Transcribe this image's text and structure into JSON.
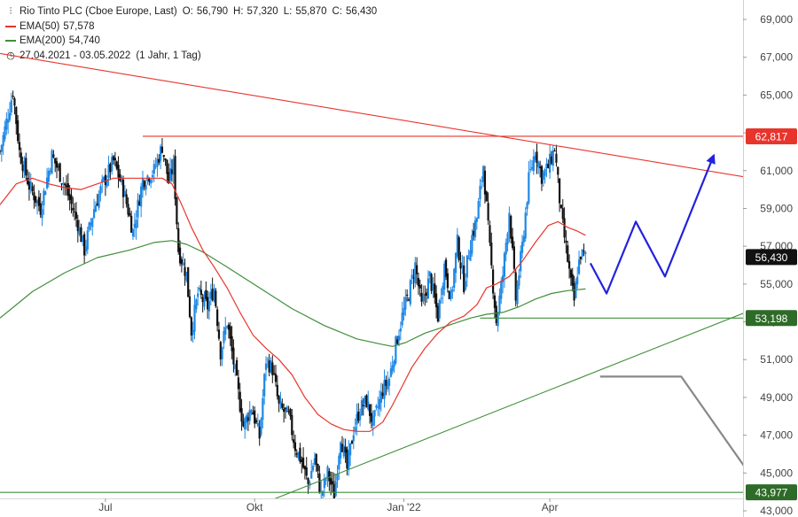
{
  "header": {
    "title": "Rio Tinto PLC (Cboe Europe, Last)",
    "ohlc": [
      {
        "label": "O:",
        "value": "56,790"
      },
      {
        "label": "H:",
        "value": "57,320"
      },
      {
        "label": "L:",
        "value": "55,870"
      },
      {
        "label": "C:",
        "value": "56,430"
      }
    ],
    "ema50": {
      "label": "EMA(50)",
      "value": "57,578",
      "color": "#e8352c"
    },
    "ema200": {
      "label": "EMA(200)",
      "value": "54,740",
      "color": "#3f8f3a"
    },
    "period": "27.04.2021 - 03.05.2022",
    "interval": "(1 Jahr, 1 Tag)"
  },
  "chart_data": {
    "type": "candlestick",
    "y_ticks": [
      "69,000",
      "67,000",
      "65,000",
      "63,000",
      "61,000",
      "59,000",
      "57,000",
      "55,000",
      "53,000",
      "51,000",
      "49,000",
      "47,000",
      "45,000",
      "43,000"
    ],
    "y_tick_values": [
      69,
      67,
      65,
      63,
      61,
      59,
      57,
      55,
      53,
      51,
      49,
      47,
      45,
      43
    ],
    "x_ticks": [
      {
        "label": "Jul",
        "day": 65
      },
      {
        "label": "Okt",
        "day": 157
      },
      {
        "label": "Jan '22",
        "day": 249
      },
      {
        "label": "Apr",
        "day": 339
      }
    ],
    "price_tags": [
      {
        "value": 62.817,
        "label": "62,817",
        "bg": "#e8352c",
        "fg": "#ffffff"
      },
      {
        "value": 56.43,
        "label": "56,430",
        "bg": "#111111",
        "fg": "#ffffff"
      },
      {
        "value": 53.198,
        "label": "53,198",
        "bg": "#2e6b28",
        "fg": "#ffffff"
      },
      {
        "value": 43.977,
        "label": "43,977",
        "bg": "#2e6b28",
        "fg": "#ffffff"
      }
    ],
    "close_anchors": [
      [
        0,
        62.0
      ],
      [
        8,
        65.2
      ],
      [
        12,
        62.0
      ],
      [
        18,
        60.2
      ],
      [
        25,
        59.0
      ],
      [
        32,
        61.8
      ],
      [
        40,
        60.2
      ],
      [
        48,
        58.2
      ],
      [
        52,
        56.8
      ],
      [
        58,
        59.0
      ],
      [
        63,
        60.2
      ],
      [
        70,
        61.5
      ],
      [
        76,
        60.0
      ],
      [
        82,
        57.8
      ],
      [
        88,
        60.5
      ],
      [
        95,
        61.0
      ],
      [
        100,
        62.3
      ],
      [
        104,
        60.4
      ],
      [
        107,
        61.3
      ],
      [
        110,
        56.8
      ],
      [
        115,
        55.5
      ],
      [
        118,
        52.5
      ],
      [
        122,
        54.5
      ],
      [
        128,
        53.8
      ],
      [
        132,
        54.8
      ],
      [
        136,
        51.4
      ],
      [
        140,
        53.0
      ],
      [
        145,
        50.3
      ],
      [
        150,
        47.5
      ],
      [
        155,
        48.5
      ],
      [
        160,
        46.9
      ],
      [
        164,
        51.0
      ],
      [
        168,
        50.5
      ],
      [
        172,
        48.5
      ],
      [
        178,
        48.0
      ],
      [
        182,
        46.4
      ],
      [
        186,
        45.6
      ],
      [
        190,
        44.4
      ],
      [
        194,
        45.8
      ],
      [
        198,
        43.8
      ],
      [
        202,
        45.0
      ],
      [
        206,
        43.8
      ],
      [
        210,
        47.0
      ],
      [
        214,
        45.2
      ],
      [
        218,
        47.3
      ],
      [
        222,
        48.4
      ],
      [
        226,
        48.8
      ],
      [
        230,
        47.6
      ],
      [
        236,
        49.4
      ],
      [
        240,
        50.0
      ],
      [
        244,
        51.8
      ],
      [
        248,
        53.3
      ],
      [
        252,
        54.5
      ],
      [
        256,
        56.0
      ],
      [
        260,
        53.8
      ],
      [
        265,
        55.4
      ],
      [
        270,
        53.3
      ],
      [
        274,
        56.0
      ],
      [
        278,
        54.2
      ],
      [
        282,
        57.2
      ],
      [
        286,
        55.0
      ],
      [
        290,
        57.2
      ],
      [
        294,
        58.5
      ],
      [
        298,
        61.3
      ],
      [
        302,
        56.8
      ],
      [
        306,
        53.0
      ],
      [
        310,
        55.5
      ],
      [
        314,
        58.9
      ],
      [
        318,
        54.2
      ],
      [
        322,
        57.0
      ],
      [
        326,
        60.5
      ],
      [
        330,
        62.1
      ],
      [
        334,
        60.7
      ],
      [
        338,
        61.2
      ],
      [
        342,
        62.2
      ],
      [
        346,
        58.6
      ],
      [
        349,
        56.9
      ],
      [
        352,
        55.0
      ],
      [
        354,
        54.1
      ],
      [
        356,
        55.7
      ],
      [
        358,
        56.6
      ],
      [
        361,
        56.43
      ]
    ],
    "ema50": [
      [
        0,
        59.2
      ],
      [
        10,
        60.3
      ],
      [
        20,
        60.6
      ],
      [
        30,
        60.3
      ],
      [
        40,
        60.1
      ],
      [
        50,
        60.0
      ],
      [
        60,
        60.3
      ],
      [
        70,
        60.6
      ],
      [
        80,
        60.6
      ],
      [
        90,
        60.6
      ],
      [
        100,
        60.6
      ],
      [
        106,
        60.3
      ],
      [
        112,
        59.2
      ],
      [
        118,
        58.0
      ],
      [
        125,
        56.8
      ],
      [
        132,
        55.9
      ],
      [
        140,
        54.8
      ],
      [
        148,
        53.5
      ],
      [
        156,
        52.3
      ],
      [
        164,
        51.6
      ],
      [
        172,
        51.0
      ],
      [
        180,
        50.2
      ],
      [
        188,
        49.0
      ],
      [
        196,
        48.1
      ],
      [
        204,
        47.6
      ],
      [
        212,
        47.3
      ],
      [
        220,
        47.2
      ],
      [
        228,
        47.2
      ],
      [
        236,
        47.7
      ],
      [
        242,
        48.6
      ],
      [
        248,
        49.6
      ],
      [
        254,
        50.6
      ],
      [
        262,
        51.6
      ],
      [
        270,
        52.4
      ],
      [
        278,
        53.0
      ],
      [
        286,
        53.3
      ],
      [
        294,
        53.9
      ],
      [
        300,
        54.8
      ],
      [
        306,
        55.0
      ],
      [
        314,
        55.4
      ],
      [
        322,
        56.2
      ],
      [
        330,
        57.2
      ],
      [
        338,
        58.1
      ],
      [
        344,
        58.3
      ],
      [
        350,
        58.0
      ],
      [
        356,
        57.8
      ],
      [
        361,
        57.578
      ]
    ],
    "ema200": [
      [
        0,
        53.2
      ],
      [
        20,
        54.6
      ],
      [
        40,
        55.6
      ],
      [
        60,
        56.4
      ],
      [
        80,
        56.8
      ],
      [
        95,
        57.2
      ],
      [
        106,
        57.3
      ],
      [
        115,
        57.1
      ],
      [
        125,
        56.7
      ],
      [
        140,
        55.9
      ],
      [
        160,
        54.8
      ],
      [
        180,
        53.7
      ],
      [
        200,
        52.8
      ],
      [
        220,
        52.1
      ],
      [
        236,
        51.8
      ],
      [
        242,
        51.7
      ],
      [
        250,
        51.9
      ],
      [
        262,
        52.4
      ],
      [
        276,
        52.8
      ],
      [
        290,
        53.2
      ],
      [
        300,
        53.4
      ],
      [
        310,
        53.5
      ],
      [
        320,
        53.8
      ],
      [
        330,
        54.2
      ],
      [
        340,
        54.5
      ],
      [
        350,
        54.65
      ],
      [
        361,
        54.74
      ]
    ],
    "trendlines": [
      {
        "name": "resistance-downtrend",
        "color": "#e8352c",
        "p1": [
          0,
          67.2
        ],
        "p2": [
          492,
          60.2
        ]
      },
      {
        "name": "support-uptrend",
        "color": "#3f8f3a",
        "p1": [
          133,
          42.4
        ],
        "p2": [
          492,
          54.6
        ]
      },
      {
        "name": "support-lower-uptrend",
        "color": "#3f8f3a",
        "p1": [
          400,
          42.4
        ],
        "p2": [
          492,
          43.3
        ]
      },
      {
        "name": "horizontal-62817",
        "color": "#e8352c",
        "p1": [
          88,
          62.817
        ],
        "p2": [
          492,
          62.817
        ]
      },
      {
        "name": "horizontal-53198",
        "color": "#3f8f3a",
        "p1": [
          296,
          53.198
        ],
        "p2": [
          492,
          53.198
        ]
      },
      {
        "name": "horizontal-43977",
        "color": "#3f8f3a",
        "p1": [
          0,
          43.977
        ],
        "p2": [
          492,
          43.977
        ]
      }
    ],
    "scenarios": [
      {
        "name": "bullish-path",
        "color": "#2222dd",
        "points": [
          [
            364,
            56.1
          ],
          [
            374,
            54.5
          ],
          [
            392,
            58.3
          ],
          [
            410,
            55.4
          ],
          [
            440,
            61.8
          ]
        ]
      },
      {
        "name": "bearish-path",
        "color": "#888888",
        "points": [
          [
            370,
            50.1
          ],
          [
            420,
            50.1
          ],
          [
            470,
            44.0
          ],
          [
            485,
            47.6
          ]
        ]
      }
    ],
    "ylim": [
      43,
      69.5
    ],
    "xlim": [
      0,
      492
    ]
  }
}
